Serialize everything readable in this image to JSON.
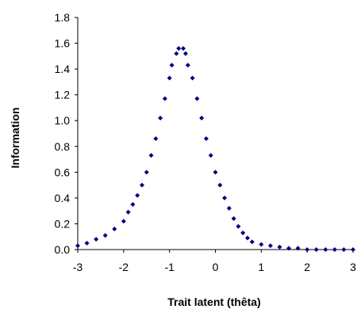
{
  "chart_data": {
    "type": "scatter",
    "title": "",
    "xlabel": "Trait latent (thêta)",
    "ylabel": "Information",
    "xlim": [
      -3,
      3
    ],
    "ylim": [
      0,
      1.8
    ],
    "x_ticks": [
      "-3",
      "-2",
      "-1",
      "0",
      "1",
      "2",
      "3"
    ],
    "y_ticks": [
      "0.0",
      "0.2",
      "0.4",
      "0.6",
      "0.8",
      "1.0",
      "1.2",
      "1.4",
      "1.6",
      "1.8"
    ],
    "grid": false,
    "legend": "none",
    "marker_color": "#000080",
    "series": [
      {
        "points": [
          {
            "x": -3.0,
            "y": 0.03
          },
          {
            "x": -2.8,
            "y": 0.05
          },
          {
            "x": -2.6,
            "y": 0.08
          },
          {
            "x": -2.4,
            "y": 0.11
          },
          {
            "x": -2.2,
            "y": 0.16
          },
          {
            "x": -2.0,
            "y": 0.22
          },
          {
            "x": -1.9,
            "y": 0.29
          },
          {
            "x": -1.8,
            "y": 0.35
          },
          {
            "x": -1.7,
            "y": 0.42
          },
          {
            "x": -1.6,
            "y": 0.5
          },
          {
            "x": -1.5,
            "y": 0.6
          },
          {
            "x": -1.4,
            "y": 0.73
          },
          {
            "x": -1.3,
            "y": 0.86
          },
          {
            "x": -1.2,
            "y": 1.02
          },
          {
            "x": -1.1,
            "y": 1.17
          },
          {
            "x": -1.0,
            "y": 1.33
          },
          {
            "x": -0.95,
            "y": 1.43
          },
          {
            "x": -0.85,
            "y": 1.52
          },
          {
            "x": -0.8,
            "y": 1.56
          },
          {
            "x": -0.7,
            "y": 1.56
          },
          {
            "x": -0.65,
            "y": 1.52
          },
          {
            "x": -0.6,
            "y": 1.43
          },
          {
            "x": -0.5,
            "y": 1.33
          },
          {
            "x": -0.4,
            "y": 1.17
          },
          {
            "x": -0.3,
            "y": 1.02
          },
          {
            "x": -0.2,
            "y": 0.86
          },
          {
            "x": -0.1,
            "y": 0.73
          },
          {
            "x": 0.0,
            "y": 0.6
          },
          {
            "x": 0.1,
            "y": 0.5
          },
          {
            "x": 0.2,
            "y": 0.4
          },
          {
            "x": 0.3,
            "y": 0.32
          },
          {
            "x": 0.4,
            "y": 0.24
          },
          {
            "x": 0.5,
            "y": 0.18
          },
          {
            "x": 0.6,
            "y": 0.13
          },
          {
            "x": 0.7,
            "y": 0.09
          },
          {
            "x": 0.8,
            "y": 0.06
          },
          {
            "x": 1.0,
            "y": 0.04
          },
          {
            "x": 1.2,
            "y": 0.03
          },
          {
            "x": 1.4,
            "y": 0.02
          },
          {
            "x": 1.6,
            "y": 0.01
          },
          {
            "x": 1.8,
            "y": 0.01
          },
          {
            "x": 2.0,
            "y": 0.0
          },
          {
            "x": 2.2,
            "y": 0.0
          },
          {
            "x": 2.4,
            "y": 0.0
          },
          {
            "x": 2.6,
            "y": 0.0
          },
          {
            "x": 2.8,
            "y": 0.0
          },
          {
            "x": 3.0,
            "y": 0.0
          }
        ]
      }
    ]
  }
}
